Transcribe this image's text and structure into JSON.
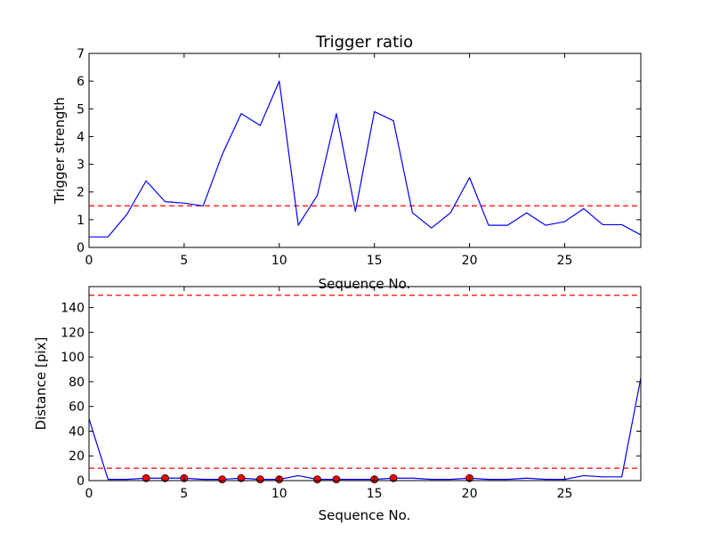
{
  "chart_data": [
    {
      "type": "line",
      "title": "Trigger ratio",
      "xlabel": "Sequence No.",
      "ylabel": "Trigger strength",
      "xlim": [
        0,
        29
      ],
      "ylim": [
        0,
        7
      ],
      "xticks": [
        0,
        5,
        10,
        15,
        20,
        25
      ],
      "yticks": [
        0,
        1,
        2,
        3,
        4,
        5,
        6,
        7
      ],
      "grid": false,
      "series": [
        {
          "color": "#0000ff",
          "x": [
            0,
            1,
            2,
            3,
            4,
            5,
            6,
            7,
            8,
            9,
            10,
            11,
            12,
            13,
            14,
            15,
            16,
            17,
            18,
            19,
            20,
            21,
            22,
            23,
            24,
            25,
            26,
            27,
            28,
            29
          ],
          "y": [
            0.38,
            0.38,
            1.2,
            2.4,
            1.65,
            1.6,
            1.5,
            3.35,
            4.83,
            4.4,
            6.0,
            0.8,
            1.88,
            4.83,
            1.3,
            4.9,
            4.57,
            1.25,
            0.7,
            1.25,
            2.52,
            0.8,
            0.8,
            1.25,
            0.8,
            0.93,
            1.4,
            0.82,
            0.82,
            0.45
          ]
        }
      ],
      "hlines": [
        {
          "y": 1.5,
          "color": "#ff0000",
          "style": "dashed"
        }
      ]
    },
    {
      "type": "line",
      "title": "",
      "xlabel": "Sequence No.",
      "ylabel": "Distance [pix]",
      "xlim": [
        0,
        29
      ],
      "ylim": [
        0,
        157
      ],
      "xticks": [
        0,
        5,
        10,
        15,
        20,
        25
      ],
      "yticks": [
        0,
        20,
        40,
        60,
        80,
        100,
        120,
        140
      ],
      "grid": false,
      "series": [
        {
          "color": "#0000ff",
          "x": [
            0,
            1,
            2,
            3,
            4,
            5,
            6,
            7,
            8,
            9,
            10,
            11,
            12,
            13,
            14,
            15,
            16,
            17,
            18,
            19,
            20,
            21,
            22,
            23,
            24,
            25,
            26,
            27,
            28,
            29
          ],
          "y": [
            50,
            1,
            1,
            2,
            2,
            2,
            1,
            1,
            2,
            1,
            1,
            4,
            1,
            1,
            1,
            1,
            2,
            2,
            1,
            1,
            2,
            1,
            1,
            2,
            1,
            1,
            4,
            3,
            3,
            83
          ]
        }
      ],
      "markers": {
        "color": "#ff0000",
        "x": [
          3,
          4,
          5,
          7,
          8,
          9,
          10,
          12,
          13,
          15,
          16,
          20
        ],
        "y": [
          2,
          2,
          2,
          1,
          2,
          1,
          1,
          1,
          1,
          1,
          2,
          2
        ]
      },
      "hlines": [
        {
          "y": 150,
          "color": "#ff0000",
          "style": "dashed"
        },
        {
          "y": 10,
          "color": "#ff0000",
          "style": "dashed"
        }
      ]
    }
  ]
}
